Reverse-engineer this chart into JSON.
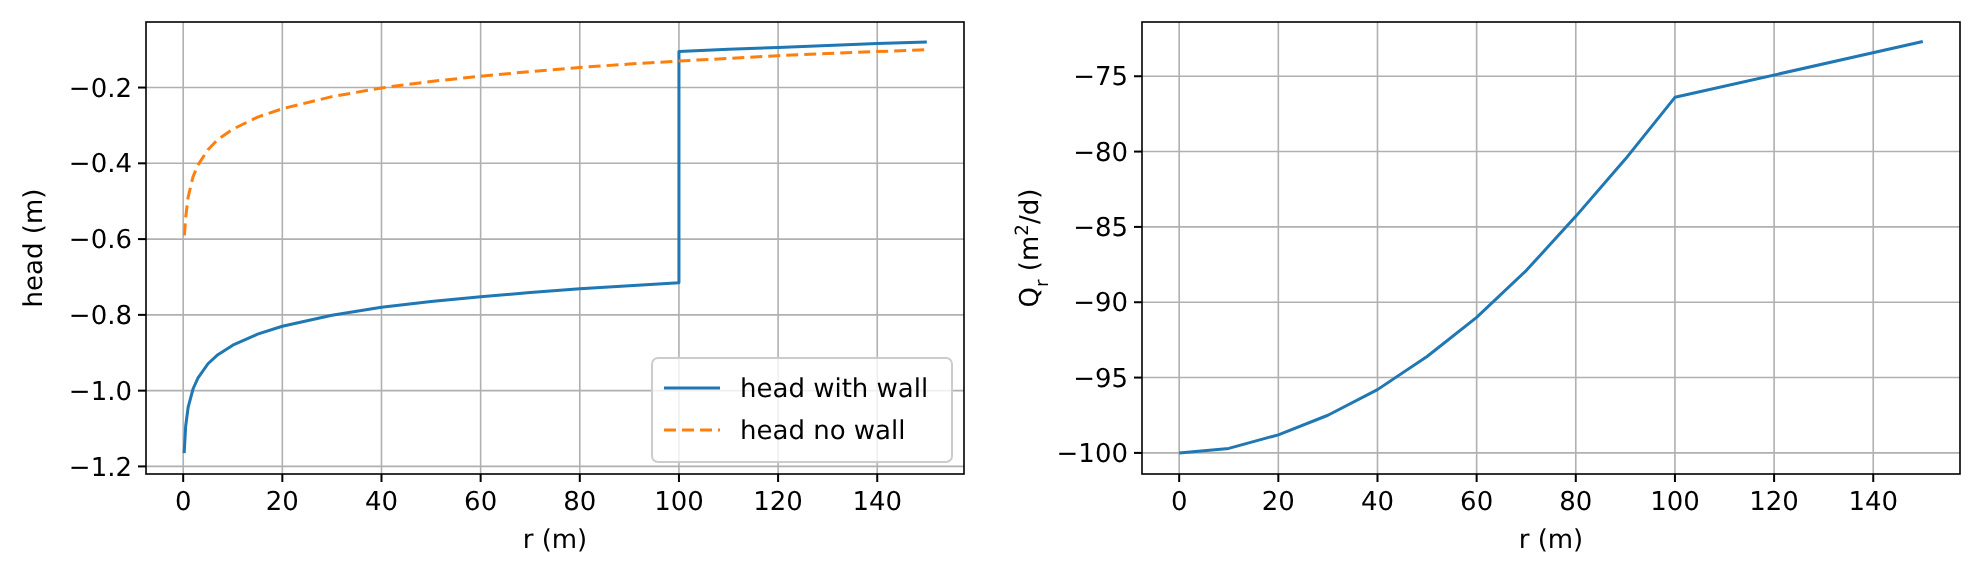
{
  "chart_data": [
    {
      "type": "line",
      "xlabel": "r (m)",
      "ylabel": "head (m)",
      "xlim": [
        -7.5,
        157.5
      ],
      "ylim": [
        -1.22,
        -0.027
      ],
      "xticks": [
        0,
        20,
        40,
        60,
        80,
        100,
        120,
        140
      ],
      "yticks": [
        {
          "value": -1.2,
          "label": "−1.2"
        },
        {
          "value": -1.0,
          "label": "−1.0"
        },
        {
          "value": -0.8,
          "label": "−0.8"
        },
        {
          "value": -0.6,
          "label": "−0.6"
        },
        {
          "value": -0.4,
          "label": "−0.4"
        },
        {
          "value": -0.2,
          "label": "−0.2"
        }
      ],
      "grid": true,
      "legend": "bottom right",
      "series": [
        {
          "name": "head with wall",
          "color": "#1f77b4",
          "line_style": "solid",
          "x": [
            0.2,
            0.5,
            1,
            2,
            3,
            5,
            7,
            10,
            15,
            20,
            30,
            40,
            50,
            60,
            70,
            80,
            90,
            100,
            100,
            110,
            120,
            130,
            140,
            150
          ],
          "values": [
            -1.165,
            -1.094,
            -1.044,
            -0.995,
            -0.966,
            -0.929,
            -0.905,
            -0.88,
            -0.851,
            -0.83,
            -0.801,
            -0.78,
            -0.765,
            -0.752,
            -0.741,
            -0.731,
            -0.723,
            -0.715,
            -0.105,
            -0.099,
            -0.094,
            -0.089,
            -0.084,
            -0.08
          ]
        },
        {
          "name": "head no wall",
          "color": "#ff7f0e",
          "line_style": "dashed",
          "x": [
            0.25,
            0.5,
            1,
            2,
            3,
            5,
            7,
            10,
            15,
            20,
            30,
            40,
            50,
            60,
            70,
            80,
            90,
            100,
            110,
            120,
            130,
            140,
            150
          ],
          "values": [
            -0.59,
            -0.543,
            -0.489,
            -0.435,
            -0.404,
            -0.364,
            -0.337,
            -0.31,
            -0.278,
            -0.256,
            -0.224,
            -0.201,
            -0.184,
            -0.17,
            -0.158,
            -0.147,
            -0.138,
            -0.13,
            -0.123,
            -0.116,
            -0.11,
            -0.105,
            -0.1
          ]
        }
      ]
    },
    {
      "type": "line",
      "xlabel": "r (m)",
      "ylabel": "Q$_{r}$ (m$^{2}$/d)",
      "xlim": [
        -7.5,
        157.5
      ],
      "ylim": [
        -101.4,
        -71.4
      ],
      "xticks": [
        0,
        20,
        40,
        60,
        80,
        100,
        120,
        140
      ],
      "yticks": [
        {
          "value": -100,
          "label": "−100"
        },
        {
          "value": -95,
          "label": "−95"
        },
        {
          "value": -90,
          "label": "−90"
        },
        {
          "value": -85,
          "label": "−85"
        },
        {
          "value": -80,
          "label": "−80"
        },
        {
          "value": -75,
          "label": "−75"
        }
      ],
      "grid": true,
      "series": [
        {
          "color": "#1f77b4",
          "x": [
            0,
            10,
            20,
            30,
            40,
            50,
            60,
            70,
            80,
            90,
            100,
            150
          ],
          "values": [
            -100,
            -99.7,
            -98.8,
            -97.5,
            -95.8,
            -93.6,
            -91.0,
            -87.9,
            -84.3,
            -80.5,
            -76.4,
            -72.7
          ]
        }
      ]
    }
  ]
}
